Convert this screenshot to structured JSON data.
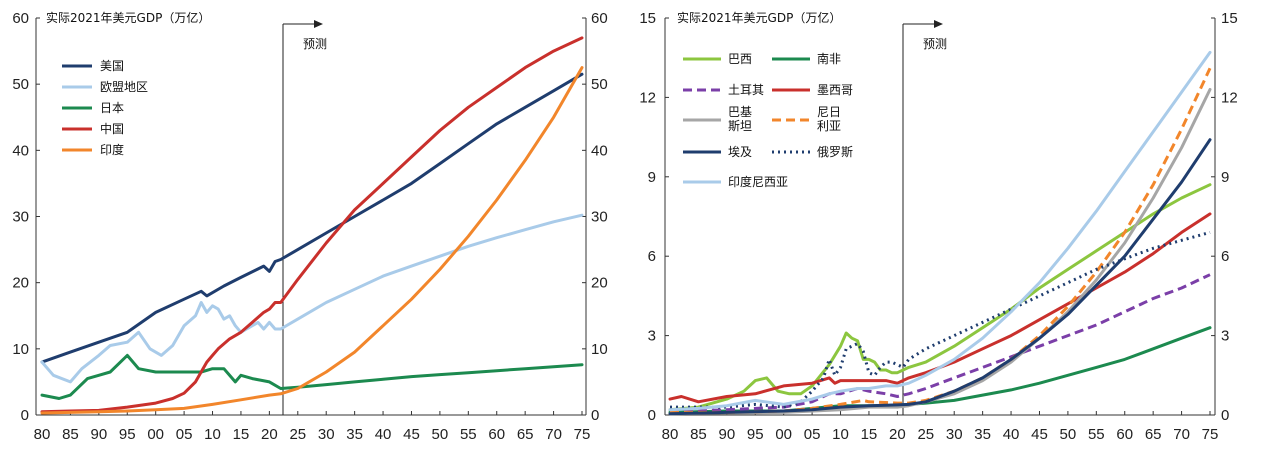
{
  "chart_data": [
    {
      "type": "line",
      "title": "实际2021年美元GDP（万亿）",
      "annotation": "预测",
      "forecast_start": 2022,
      "xlim": [
        1980,
        2075
      ],
      "ylim": [
        0,
        60
      ],
      "yticks": [
        0,
        10,
        20,
        30,
        40,
        50,
        60
      ],
      "xtick_labels": [
        "80",
        "85",
        "90",
        "95",
        "00",
        "05",
        "10",
        "15",
        "20",
        "25",
        "30",
        "35",
        "40",
        "45",
        "50",
        "55",
        "60",
        "65",
        "70",
        "75"
      ],
      "legend_position": "top-left",
      "grid": false,
      "series": [
        {
          "name": "美国",
          "color": "#1f3d6e",
          "dash": "",
          "x": [
            1980,
            1985,
            1990,
            1995,
            2000,
            2005,
            2008,
            2009,
            2012,
            2015,
            2019,
            2020,
            2021,
            2022,
            2025,
            2030,
            2035,
            2040,
            2045,
            2050,
            2055,
            2060,
            2065,
            2070,
            2075
          ],
          "y": [
            8,
            9.5,
            11,
            12.5,
            15.5,
            17.5,
            18.7,
            18,
            19.5,
            20.8,
            22.5,
            21.7,
            23.2,
            23.5,
            25,
            27.5,
            30,
            32.5,
            35,
            38,
            41,
            44,
            46.5,
            49,
            51.5
          ]
        },
        {
          "name": "欧盟地区",
          "color": "#a9cbe9",
          "dash": "",
          "x": [
            1980,
            1982,
            1985,
            1987,
            1990,
            1992,
            1995,
            1997,
            1999,
            2001,
            2003,
            2005,
            2007,
            2008,
            2009,
            2010,
            2011,
            2012,
            2013,
            2014,
            2015,
            2016,
            2018,
            2019,
            2020,
            2021,
            2022,
            2025,
            2030,
            2035,
            2040,
            2045,
            2050,
            2055,
            2060,
            2065,
            2070,
            2075
          ],
          "y": [
            8,
            6,
            5,
            7,
            9,
            10.5,
            11,
            12.5,
            10,
            9,
            10.5,
            13.5,
            15,
            17,
            15.5,
            16.5,
            16,
            14.5,
            15,
            13.5,
            12.5,
            13,
            14,
            13,
            14,
            13,
            13,
            14.5,
            17,
            19,
            21,
            22.5,
            24,
            25.5,
            26.8,
            28,
            29.2,
            30.2
          ]
        },
        {
          "name": "日本",
          "color": "#1c8a4f",
          "dash": "",
          "x": [
            1980,
            1983,
            1985,
            1988,
            1990,
            1992,
            1995,
            1997,
            2000,
            2002,
            2005,
            2008,
            2010,
            2012,
            2014,
            2015,
            2017,
            2020,
            2022,
            2025,
            2030,
            2035,
            2040,
            2045,
            2050,
            2055,
            2060,
            2065,
            2070,
            2075
          ],
          "y": [
            3,
            2.5,
            3,
            5.5,
            6,
            6.5,
            9,
            7,
            6.5,
            6.5,
            6.5,
            6.5,
            7,
            7,
            5,
            6,
            5.5,
            5,
            4,
            4.2,
            4.6,
            5,
            5.4,
            5.8,
            6.1,
            6.4,
            6.7,
            7,
            7.3,
            7.6
          ]
        },
        {
          "name": "中国",
          "color": "#c9302c",
          "dash": "",
          "x": [
            1980,
            1985,
            1990,
            1995,
            2000,
            2003,
            2005,
            2007,
            2009,
            2010,
            2011,
            2013,
            2015,
            2017,
            2019,
            2020,
            2021,
            2022,
            2025,
            2030,
            2035,
            2040,
            2045,
            2050,
            2055,
            2060,
            2065,
            2070,
            2075
          ],
          "y": [
            0.5,
            0.6,
            0.7,
            1.2,
            1.8,
            2.5,
            3.3,
            5,
            8,
            9,
            10,
            11.5,
            12.5,
            14,
            15.5,
            16,
            17,
            17,
            20.5,
            26,
            31,
            35,
            39,
            43,
            46.5,
            49.5,
            52.5,
            55,
            57
          ]
        },
        {
          "name": "印度",
          "color": "#f2862b",
          "dash": "",
          "x": [
            1980,
            1985,
            1990,
            1995,
            2000,
            2005,
            2010,
            2015,
            2020,
            2022,
            2025,
            2030,
            2035,
            2040,
            2045,
            2050,
            2055,
            2060,
            2065,
            2070,
            2075
          ],
          "y": [
            0.3,
            0.4,
            0.5,
            0.6,
            0.8,
            1,
            1.6,
            2.3,
            3,
            3.2,
            4,
            6.5,
            9.5,
            13.5,
            17.5,
            22,
            27,
            32.5,
            38.5,
            45,
            52.5
          ]
        }
      ]
    },
    {
      "type": "line",
      "title": "实际2021年美元GDP（万亿）",
      "annotation": "预测",
      "forecast_start": 2022,
      "xlim": [
        1980,
        2075
      ],
      "ylim": [
        0,
        15
      ],
      "yticks": [
        0,
        3,
        6,
        9,
        12,
        15
      ],
      "xtick_labels": [
        "80",
        "85",
        "90",
        "95",
        "00",
        "05",
        "10",
        "15",
        "20",
        "25",
        "30",
        "35",
        "40",
        "45",
        "50",
        "55",
        "60",
        "65",
        "70",
        "75"
      ],
      "legend_position": "top-left",
      "grid": false,
      "series": [
        {
          "name": "巴西",
          "color": "#8cc63f",
          "dash": "",
          "x": [
            1980,
            1985,
            1990,
            1993,
            1995,
            1997,
            1999,
            2001,
            2003,
            2005,
            2008,
            2010,
            2011,
            2012,
            2013,
            2014,
            2015,
            2016,
            2017,
            2018,
            2019,
            2020,
            2021,
            2022,
            2025,
            2030,
            2035,
            2040,
            2045,
            2050,
            2055,
            2060,
            2065,
            2070,
            2075
          ],
          "y": [
            0.2,
            0.3,
            0.6,
            0.9,
            1.3,
            1.4,
            0.9,
            0.8,
            0.8,
            1.1,
            1.9,
            2.6,
            3.1,
            2.9,
            2.8,
            2.1,
            2.1,
            2.0,
            1.7,
            1.7,
            1.6,
            1.6,
            1.7,
            1.8,
            2.0,
            2.6,
            3.3,
            4.0,
            4.8,
            5.5,
            6.2,
            6.9,
            7.6,
            8.2,
            8.7
          ]
        },
        {
          "name": "南非",
          "color": "#1c8a4f",
          "dash": "",
          "x": [
            1980,
            1990,
            2000,
            2005,
            2010,
            2015,
            2020,
            2022,
            2025,
            2030,
            2035,
            2040,
            2045,
            2050,
            2055,
            2060,
            2065,
            2070,
            2075
          ],
          "y": [
            0.1,
            0.15,
            0.15,
            0.25,
            0.35,
            0.35,
            0.35,
            0.4,
            0.45,
            0.55,
            0.75,
            0.95,
            1.2,
            1.5,
            1.8,
            2.1,
            2.5,
            2.9,
            3.3
          ]
        },
        {
          "name": "土耳其",
          "color": "#7b3fa8",
          "dash": "9,5",
          "x": [
            1980,
            1990,
            2000,
            2005,
            2008,
            2010,
            2013,
            2015,
            2018,
            2020,
            2022,
            2025,
            2030,
            2035,
            2040,
            2045,
            2050,
            2055,
            2060,
            2065,
            2070,
            2075
          ],
          "y": [
            0.1,
            0.2,
            0.3,
            0.5,
            0.8,
            0.8,
            1.0,
            0.9,
            0.8,
            0.7,
            0.8,
            1.0,
            1.4,
            1.8,
            2.2,
            2.6,
            3.0,
            3.4,
            3.9,
            4.4,
            4.8,
            5.3
          ]
        },
        {
          "name": "墨西哥",
          "color": "#c9302c",
          "dash": "",
          "x": [
            1980,
            1982,
            1985,
            1990,
            1995,
            2000,
            2005,
            2008,
            2009,
            2010,
            2012,
            2015,
            2018,
            2020,
            2022,
            2025,
            2030,
            2035,
            2040,
            2045,
            2050,
            2055,
            2060,
            2065,
            2070,
            2075
          ],
          "y": [
            0.6,
            0.7,
            0.5,
            0.7,
            0.8,
            1.1,
            1.2,
            1.4,
            1.2,
            1.3,
            1.3,
            1.3,
            1.3,
            1.2,
            1.4,
            1.6,
            2.0,
            2.5,
            3.0,
            3.6,
            4.2,
            4.8,
            5.4,
            6.1,
            6.9,
            7.6
          ]
        },
        {
          "name": "巴基斯坦",
          "color": "#a6a6a6",
          "dash": "",
          "x": [
            1980,
            1990,
            2000,
            2010,
            2015,
            2020,
            2022,
            2025,
            2030,
            2035,
            2040,
            2045,
            2050,
            2055,
            2060,
            2065,
            2070,
            2075
          ],
          "y": [
            0.05,
            0.08,
            0.1,
            0.2,
            0.3,
            0.3,
            0.35,
            0.5,
            0.8,
            1.3,
            2.0,
            2.9,
            3.9,
            5.1,
            6.5,
            8.2,
            10.1,
            12.3
          ]
        },
        {
          "name": "尼日利亚",
          "color": "#f2862b",
          "dash": "9,5",
          "x": [
            1980,
            1990,
            2000,
            2005,
            2010,
            2014,
            2015,
            2020,
            2022,
            2025,
            2030,
            2035,
            2040,
            2045,
            2050,
            2055,
            2060,
            2065,
            2070,
            2075
          ],
          "y": [
            0.1,
            0.1,
            0.15,
            0.25,
            0.4,
            0.55,
            0.5,
            0.45,
            0.45,
            0.55,
            0.9,
            1.4,
            2.1,
            3.0,
            4.1,
            5.4,
            6.9,
            8.7,
            10.8,
            13.1
          ]
        },
        {
          "name": "埃及",
          "color": "#1f3d6e",
          "dash": "",
          "x": [
            1980,
            1990,
            2000,
            2005,
            2010,
            2015,
            2020,
            2022,
            2025,
            2030,
            2035,
            2040,
            2045,
            2050,
            2055,
            2060,
            2065,
            2070,
            2075
          ],
          "y": [
            0.05,
            0.1,
            0.15,
            0.2,
            0.3,
            0.35,
            0.38,
            0.4,
            0.5,
            0.9,
            1.4,
            2.1,
            2.9,
            3.8,
            4.9,
            6.0,
            7.4,
            8.8,
            10.4
          ]
        },
        {
          "name": "俄罗斯",
          "color": "#1f3d6e",
          "dash": "2,4",
          "x": [
            1980,
            1990,
            1995,
            2000,
            2003,
            2005,
            2007,
            2008,
            2009,
            2010,
            2011,
            2012,
            2013,
            2014,
            2015,
            2016,
            2017,
            2018,
            2019,
            2020,
            2021,
            2022,
            2025,
            2030,
            2035,
            2040,
            2045,
            2050,
            2055,
            2060,
            2065,
            2070,
            2075
          ],
          "y": [
            0.3,
            0.3,
            0.4,
            0.3,
            0.5,
            0.9,
            1.4,
            2.1,
            1.5,
            1.8,
            2.5,
            2.6,
            2.7,
            2.4,
            1.6,
            1.5,
            1.8,
            2.0,
            2.0,
            1.9,
            1.8,
            2.1,
            2.5,
            3.0,
            3.5,
            4.0,
            4.5,
            5.0,
            5.5,
            5.9,
            6.3,
            6.6,
            6.9
          ]
        },
        {
          "name": "印度尼西亚",
          "color": "#a9cbe9",
          "dash": "",
          "x": [
            1980,
            1985,
            1990,
            1995,
            2000,
            2005,
            2008,
            2010,
            2013,
            2015,
            2018,
            2020,
            2022,
            2025,
            2030,
            2035,
            2040,
            2045,
            2050,
            2055,
            2060,
            2065,
            2070,
            2075
          ],
          "y": [
            0.2,
            0.25,
            0.35,
            0.55,
            0.4,
            0.6,
            0.8,
            0.9,
            1.0,
            1.0,
            1.1,
            1.1,
            1.2,
            1.5,
            2.1,
            2.9,
            3.9,
            5.0,
            6.3,
            7.7,
            9.2,
            10.7,
            12.2,
            13.7
          ]
        }
      ]
    }
  ],
  "legend_labels": {
    "巴基斯坦": [
      "巴基",
      "斯坦"
    ],
    "尼日利亚": [
      "尼日",
      "利亚"
    ]
  }
}
